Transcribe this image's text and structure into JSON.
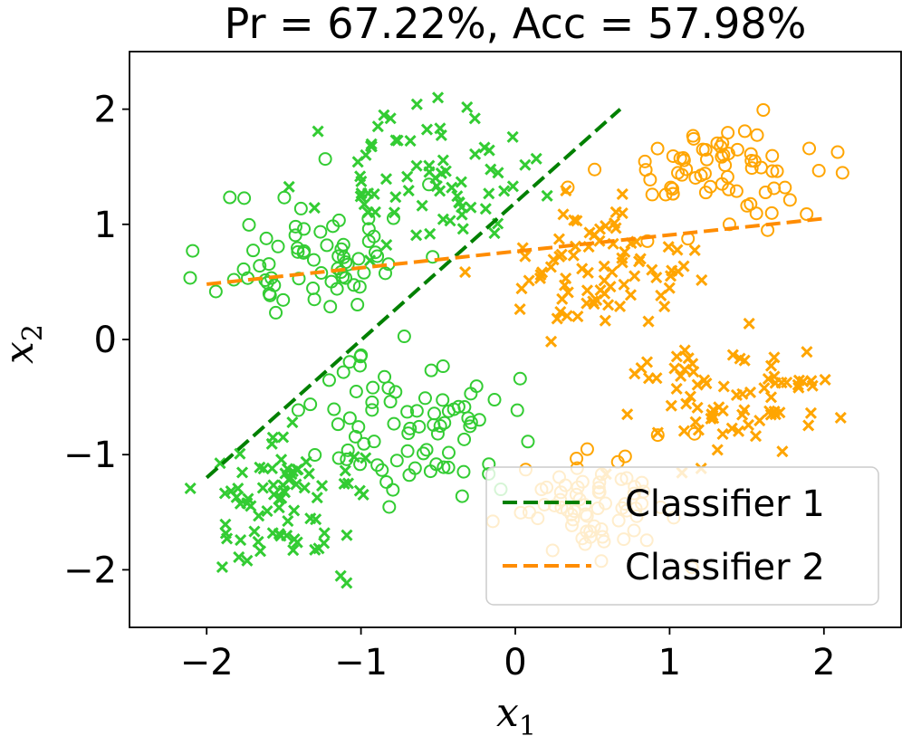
{
  "chart_data": {
    "type": "scatter",
    "title": "Pr = 67.22%, Acc = 57.98%",
    "xlabel": "x",
    "xlabel_sub": "1",
    "ylabel": "x",
    "ylabel_sub": "2",
    "xlim": [
      -2.5,
      2.5
    ],
    "ylim": [
      -2.5,
      2.5
    ],
    "xticks": [
      -2,
      -1,
      0,
      1,
      2
    ],
    "xtick_labels": [
      "−2",
      "−1",
      "0",
      "1",
      "2"
    ],
    "yticks": [
      -2,
      -1,
      0,
      1,
      2
    ],
    "ytick_labels": [
      "−2",
      "−1",
      "0",
      "1",
      "2"
    ],
    "grid": false,
    "legend_position": "lower-right",
    "colors": {
      "green_points": "#33cc33",
      "orange_points": "#ffa500",
      "classifier1": "#008000",
      "classifier2": "#ff8c00"
    },
    "clusters": [
      {
        "name": "green-circles",
        "marker": "o",
        "color": "#33cc33",
        "center": [
          -1.3,
          0.75
        ],
        "spread": [
          0.32,
          0.3
        ],
        "count": 70,
        "seed": 11
      },
      {
        "name": "green-crosses-top",
        "marker": "x",
        "color": "#33cc33",
        "center": [
          -0.6,
          1.4
        ],
        "spread": [
          0.32,
          0.28
        ],
        "count": 75,
        "seed": 23
      },
      {
        "name": "green-circles-bottom",
        "marker": "o",
        "color": "#33cc33",
        "center": [
          -0.65,
          -0.75
        ],
        "spread": [
          0.32,
          0.32
        ],
        "count": 80,
        "seed": 37
      },
      {
        "name": "green-crosses-bottom",
        "marker": "x",
        "color": "#33cc33",
        "center": [
          -1.45,
          -1.4
        ],
        "spread": [
          0.28,
          0.28
        ],
        "count": 80,
        "seed": 41
      },
      {
        "name": "orange-circles-top",
        "marker": "o",
        "color": "#ffa500",
        "center": [
          1.35,
          1.45
        ],
        "spread": [
          0.38,
          0.25
        ],
        "count": 70,
        "seed": 53
      },
      {
        "name": "orange-crosses-mid",
        "marker": "x",
        "color": "#ffa500",
        "center": [
          0.55,
          0.55
        ],
        "spread": [
          0.3,
          0.28
        ],
        "count": 80,
        "seed": 67
      },
      {
        "name": "orange-crosses-bottom",
        "marker": "x",
        "color": "#ffa500",
        "center": [
          1.4,
          -0.55
        ],
        "spread": [
          0.38,
          0.3
        ],
        "count": 80,
        "seed": 71
      },
      {
        "name": "orange-circles-bottom",
        "marker": "o",
        "color": "#ffa500",
        "center": [
          0.55,
          -1.45
        ],
        "spread": [
          0.25,
          0.25
        ],
        "count": 70,
        "seed": 83
      }
    ],
    "series": [
      {
        "name": "Classifier 1",
        "type": "line",
        "style": "dashed",
        "color": "#008000",
        "x": [
          -2.0,
          0.68
        ],
        "y": [
          -1.2,
          2.0
        ]
      },
      {
        "name": "Classifier 2",
        "type": "line",
        "style": "dashed",
        "color": "#ff8c00",
        "x": [
          -2.0,
          2.0
        ],
        "y": [
          0.48,
          1.05
        ]
      }
    ],
    "legend": [
      "Classifier 1",
      "Classifier 2"
    ]
  }
}
